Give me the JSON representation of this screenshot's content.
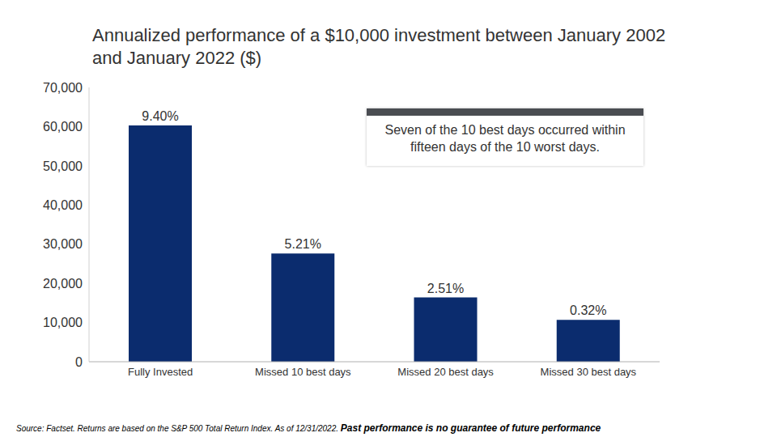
{
  "chart_data": {
    "type": "bar",
    "title": "Annualized performance of a $10,000 investment between January 2002 and January 2022 ($)",
    "categories": [
      "Fully Invested",
      "Missed 10 best days",
      "Missed 20 best days",
      "Missed 30 best days"
    ],
    "values": [
      60300,
      27600,
      16400,
      10700
    ],
    "bar_labels": [
      "9.40%",
      "5.21%",
      "2.51%",
      "0.32%"
    ],
    "color": "#0b2c6e",
    "ylim": [
      0,
      70000
    ],
    "yticks": [
      0,
      {
        "value": 10000,
        "label": "10,000"
      },
      {
        "value": 20000,
        "label": "20,000"
      },
      {
        "value": 30000,
        "label": "30,000"
      },
      {
        "value": 40000,
        "label": "40,000"
      },
      {
        "value": 50000,
        "label": "50,000"
      },
      {
        "value": 60000,
        "label": "60,000"
      },
      {
        "value": 70000,
        "label": "70,000"
      }
    ],
    "grid": false,
    "annotation": "Seven of the 10 best days occurred within fifteen days of the 10 worst days.",
    "source": "Source: Factset. Returns are based on the S&P 500 Total Return Index. As of 12/31/2022.",
    "disclaimer": "Past performance is no guarantee of future performance"
  }
}
